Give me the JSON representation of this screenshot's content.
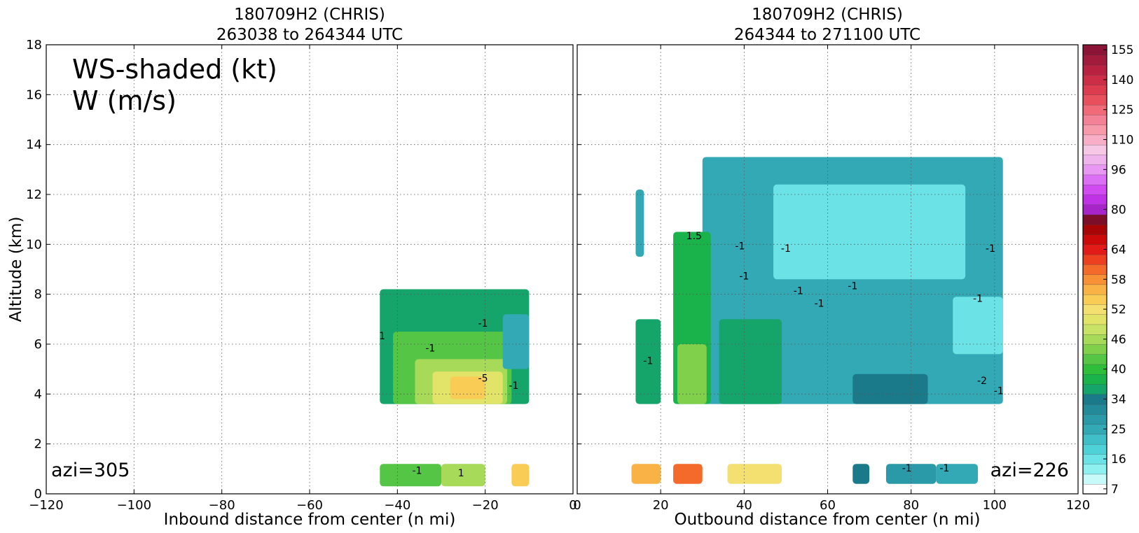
{
  "chart_data": [
    {
      "type": "heatmap",
      "title": "180709H2 (CHRIS)",
      "subtitle": "263038 to 264344 UTC",
      "xlabel": "Inbound distance from center (n mi)",
      "ylabel": "Altitude (km)",
      "xlim": [
        -120,
        0
      ],
      "ylim": [
        0,
        18
      ],
      "xticks": [
        -120,
        -100,
        -80,
        -60,
        -40,
        -20,
        0
      ],
      "yticks": [
        0,
        2,
        4,
        6,
        8,
        10,
        12,
        14,
        16,
        18
      ],
      "grid": true,
      "legend_text": [
        "WS-shaded (kt)",
        "W (m/s)"
      ],
      "annotation": "azi=305",
      "contour_labels": [
        {
          "x": -43.5,
          "y": 6.2,
          "text": "1"
        },
        {
          "x": -32.5,
          "y": 5.7,
          "text": "-1"
        },
        {
          "x": -20.5,
          "y": 4.5,
          "text": "-5"
        },
        {
          "x": -13.5,
          "y": 4.2,
          "text": "-1"
        },
        {
          "x": -20.5,
          "y": 6.7,
          "text": "-1"
        },
        {
          "x": -35.5,
          "y": 0.8,
          "text": "-1"
        },
        {
          "x": -25.5,
          "y": 0.7,
          "text": "1"
        }
      ],
      "shaded_regions": [
        {
          "x": [
            -44,
            -10
          ],
          "y": [
            3.6,
            8.2
          ],
          "level": 36
        },
        {
          "x": [
            -41,
            -14
          ],
          "y": [
            3.6,
            6.5
          ],
          "level": 42
        },
        {
          "x": [
            -36,
            -15
          ],
          "y": [
            3.6,
            5.4
          ],
          "level": 46
        },
        {
          "x": [
            -32,
            -16
          ],
          "y": [
            3.6,
            4.9
          ],
          "level": 50
        },
        {
          "x": [
            -28,
            -20
          ],
          "y": [
            3.8,
            4.7
          ],
          "level": 54
        },
        {
          "x": [
            -16,
            -10
          ],
          "y": [
            5.0,
            7.2
          ],
          "level": 27
        },
        {
          "x": [
            -44,
            -30
          ],
          "y": [
            0.3,
            1.2
          ],
          "level": 42
        },
        {
          "x": [
            -30,
            -20
          ],
          "y": [
            0.3,
            1.2
          ],
          "level": 46
        },
        {
          "x": [
            -14,
            -10
          ],
          "y": [
            0.3,
            1.2
          ],
          "level": 54
        }
      ]
    },
    {
      "type": "heatmap",
      "title": "180709H2 (CHRIS)",
      "subtitle": "264344 to 271100 UTC",
      "xlabel": "Outbound distance from center (n mi)",
      "ylabel": "",
      "xlim": [
        0,
        120
      ],
      "ylim": [
        0,
        18
      ],
      "xticks": [
        0,
        20,
        40,
        60,
        80,
        100,
        120
      ],
      "yticks": [
        0,
        2,
        4,
        6,
        8,
        10,
        12,
        14,
        16,
        18
      ],
      "grid": true,
      "annotation": "azi=226",
      "contour_labels": [
        {
          "x": 17,
          "y": 5.2,
          "text": "-1"
        },
        {
          "x": 28,
          "y": 10.2,
          "text": "1.5"
        },
        {
          "x": 39,
          "y": 9.8,
          "text": "-1"
        },
        {
          "x": 40,
          "y": 8.6,
          "text": "-1"
        },
        {
          "x": 50,
          "y": 9.7,
          "text": "-1"
        },
        {
          "x": 53,
          "y": 8.0,
          "text": "-1"
        },
        {
          "x": 58,
          "y": 7.5,
          "text": "-1"
        },
        {
          "x": 66,
          "y": 8.2,
          "text": "-1"
        },
        {
          "x": 96,
          "y": 7.7,
          "text": "-1"
        },
        {
          "x": 99,
          "y": 9.7,
          "text": "-1"
        },
        {
          "x": 97,
          "y": 4.4,
          "text": "-2"
        },
        {
          "x": 101,
          "y": 4.0,
          "text": "-1"
        },
        {
          "x": 79,
          "y": 0.9,
          "text": "-1"
        },
        {
          "x": 88,
          "y": 0.9,
          "text": "-1"
        }
      ],
      "shaded_regions": [
        {
          "x": [
            30,
            102
          ],
          "y": [
            3.6,
            13.5
          ],
          "level": 25
        },
        {
          "x": [
            47,
            93
          ],
          "y": [
            8.6,
            12.4
          ],
          "level": 16
        },
        {
          "x": [
            90,
            102
          ],
          "y": [
            5.6,
            7.9
          ],
          "level": 16
        },
        {
          "x": [
            14,
            20
          ],
          "y": [
            3.6,
            7.0
          ],
          "level": 37
        },
        {
          "x": [
            14,
            16
          ],
          "y": [
            9.5,
            12.2
          ],
          "level": 25
        },
        {
          "x": [
            23,
            32
          ],
          "y": [
            3.6,
            10.5
          ],
          "level": 38
        },
        {
          "x": [
            24,
            31
          ],
          "y": [
            3.6,
            6.0
          ],
          "level": 44
        },
        {
          "x": [
            34,
            49
          ],
          "y": [
            3.6,
            7.0
          ],
          "level": 36
        },
        {
          "x": [
            66,
            84
          ],
          "y": [
            3.6,
            4.8
          ],
          "level": 34
        },
        {
          "x": [
            13,
            20
          ],
          "y": [
            0.4,
            1.2
          ],
          "level": 56
        },
        {
          "x": [
            23,
            30
          ],
          "y": [
            0.4,
            1.2
          ],
          "level": 60
        },
        {
          "x": [
            36,
            49
          ],
          "y": [
            0.4,
            1.2
          ],
          "level": 52
        },
        {
          "x": [
            66,
            70
          ],
          "y": [
            0.4,
            1.2
          ],
          "level": 34
        },
        {
          "x": [
            74,
            86
          ],
          "y": [
            0.4,
            1.2
          ],
          "level": 30
        },
        {
          "x": [
            86,
            96
          ],
          "y": [
            0.4,
            1.2
          ],
          "level": 25
        }
      ]
    }
  ],
  "colorbar": {
    "levels": [
      7,
      10,
      13,
      16,
      19,
      22,
      25,
      28,
      31,
      34,
      36,
      38,
      40,
      42,
      44,
      46,
      48,
      50,
      52,
      54,
      56,
      58,
      60,
      62,
      64,
      68,
      72,
      76,
      80,
      84,
      88,
      92,
      96,
      100,
      105,
      110,
      115,
      120,
      125,
      130,
      135,
      140,
      145,
      150,
      155,
      160
    ],
    "tick_labels": [
      "7",
      "16",
      "25",
      "34",
      "40",
      "46",
      "52",
      "58",
      "64",
      "80",
      "96",
      "110",
      "125",
      "140",
      "155"
    ],
    "colors": [
      "#ffffff",
      "#c8fafa",
      "#8ff0f0",
      "#6ae2e6",
      "#4fd1d8",
      "#40bfc8",
      "#33a9b5",
      "#2b9aa8",
      "#228a98",
      "#1b7a8a",
      "#15a56a",
      "#1ab24a",
      "#2fbe3a",
      "#55c545",
      "#80d04c",
      "#a6da58",
      "#c7e264",
      "#e2e46a",
      "#f3e070",
      "#f8cc55",
      "#f9b245",
      "#f89035",
      "#f46a2a",
      "#ec4020",
      "#e21a18",
      "#cc0a0a",
      "#a80606",
      "#7c0e2a",
      "#a624c8",
      "#c032e6",
      "#d04cf0",
      "#dc70f4",
      "#e898f2",
      "#f0b4ec",
      "#f6c8e6",
      "#f8aec6",
      "#f79aaa",
      "#f48296",
      "#f06a78",
      "#e8505e",
      "#dc3c4e",
      "#cc2e48",
      "#b82240",
      "#a21a3c",
      "#8c1436"
    ]
  }
}
